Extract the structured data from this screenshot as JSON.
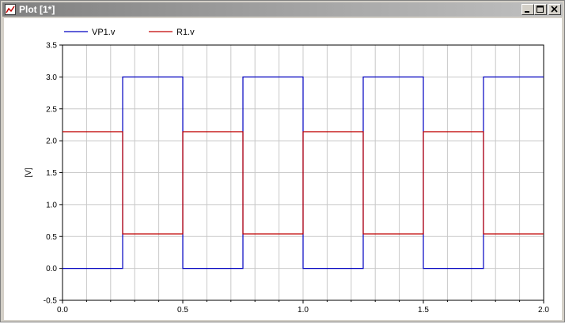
{
  "window": {
    "title": "Plot [1*]",
    "minimize_icon": "minimize-icon",
    "maximize_icon": "maximize-icon",
    "close_icon": "close-icon",
    "app_icon": "plot-app-icon"
  },
  "chart_data": {
    "type": "line",
    "ylabel": "[V]",
    "xlim": [
      0.0,
      2.0
    ],
    "ylim": [
      -0.5,
      3.5
    ],
    "grid": true,
    "legend_position": "top-left",
    "x_ticks": [
      "0.0",
      "0.5",
      "1.0",
      "1.5",
      "2.0"
    ],
    "y_ticks": [
      "3.5",
      "3.0",
      "2.5",
      "2.0",
      "1.5",
      "1.0",
      "0.5",
      "0.0",
      "-0.5"
    ],
    "series": [
      {
        "name": "VP1.v",
        "color": "#0000c0",
        "x": [
          0.0,
          0.25,
          0.25,
          0.5,
          0.5,
          0.75,
          0.75,
          1.0,
          1.0,
          1.25,
          1.25,
          1.5,
          1.5,
          1.75,
          1.75,
          2.0
        ],
        "y": [
          0.0,
          0.0,
          3.0,
          3.0,
          0.0,
          0.0,
          3.0,
          3.0,
          0.0,
          0.0,
          3.0,
          3.0,
          0.0,
          0.0,
          3.0,
          3.0
        ]
      },
      {
        "name": "R1.v",
        "color": "#c00000",
        "x": [
          0.0,
          0.25,
          0.25,
          0.5,
          0.5,
          0.75,
          0.75,
          1.0,
          1.0,
          1.25,
          1.25,
          1.5,
          1.5,
          1.75,
          1.75,
          2.0
        ],
        "y": [
          2.14,
          2.14,
          0.54,
          0.54,
          2.14,
          2.14,
          0.54,
          0.54,
          2.14,
          2.14,
          0.54,
          0.54,
          2.14,
          2.14,
          0.54,
          0.54
        ]
      }
    ]
  }
}
